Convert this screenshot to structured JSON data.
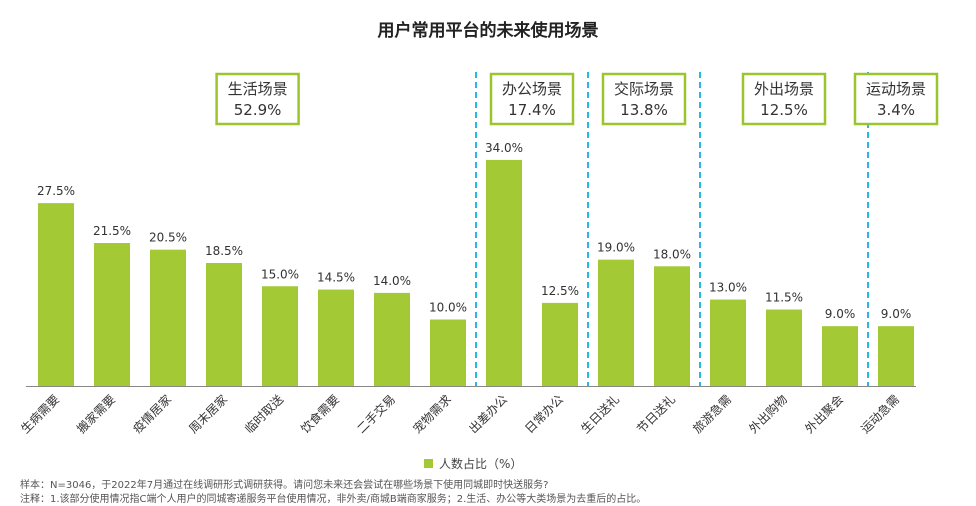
{
  "title": "用户常用平台的未来使用场景",
  "colors": {
    "bar": "#a3c934",
    "group_border": "#9bc52d",
    "divider": "#29b7e6",
    "axis": "#888888"
  },
  "groups": [
    {
      "name": "生活场景",
      "pct": "52.9%"
    },
    {
      "name": "办公场景",
      "pct": "17.4%"
    },
    {
      "name": "交际场景",
      "pct": "13.8%"
    },
    {
      "name": "外出场景",
      "pct": "12.5%"
    },
    {
      "name": "运动场景",
      "pct": "3.4%"
    }
  ],
  "chart_data": {
    "type": "bar",
    "categories": [
      "生病需要",
      "搬家需要",
      "疫情居家",
      "周末居家",
      "临时取送",
      "饮食需要",
      "二手交易",
      "宠物需求",
      "出差办公",
      "日常办公",
      "生日送礼",
      "节日送礼",
      "旅游急需",
      "外出购物",
      "外出聚会",
      "运动急需"
    ],
    "values": [
      27.5,
      21.5,
      20.5,
      18.5,
      15.0,
      14.5,
      14.0,
      10.0,
      34.0,
      12.5,
      19.0,
      18.0,
      13.0,
      11.5,
      9.0,
      9.0
    ],
    "value_labels": [
      "27.5%",
      "21.5%",
      "20.5%",
      "18.5%",
      "15.0%",
      "14.5%",
      "14.0%",
      "10.0%",
      "34.0%",
      "12.5%",
      "19.0%",
      "18.0%",
      "13.0%",
      "11.5%",
      "9.0%",
      "9.0%"
    ],
    "group_of": [
      0,
      0,
      0,
      0,
      0,
      0,
      0,
      0,
      1,
      1,
      2,
      2,
      3,
      3,
      3,
      4
    ],
    "ylim": [
      0,
      40
    ],
    "grid": false
  },
  "legend": {
    "label": "人数占比（%）",
    "position": "bottom"
  },
  "footnotes": {
    "sample": "样本：N=3046，于2022年7月通过在线调研形式调研获得。请问您未来还会尝试在哪些场景下使用同城即时快送服务?",
    "note": "注释：1.该部分使用情况指C端个人用户的同城寄递服务平台使用情况，非外卖/商城B端商家服务；2.生活、办公等大类场景为去重后的占比。"
  }
}
